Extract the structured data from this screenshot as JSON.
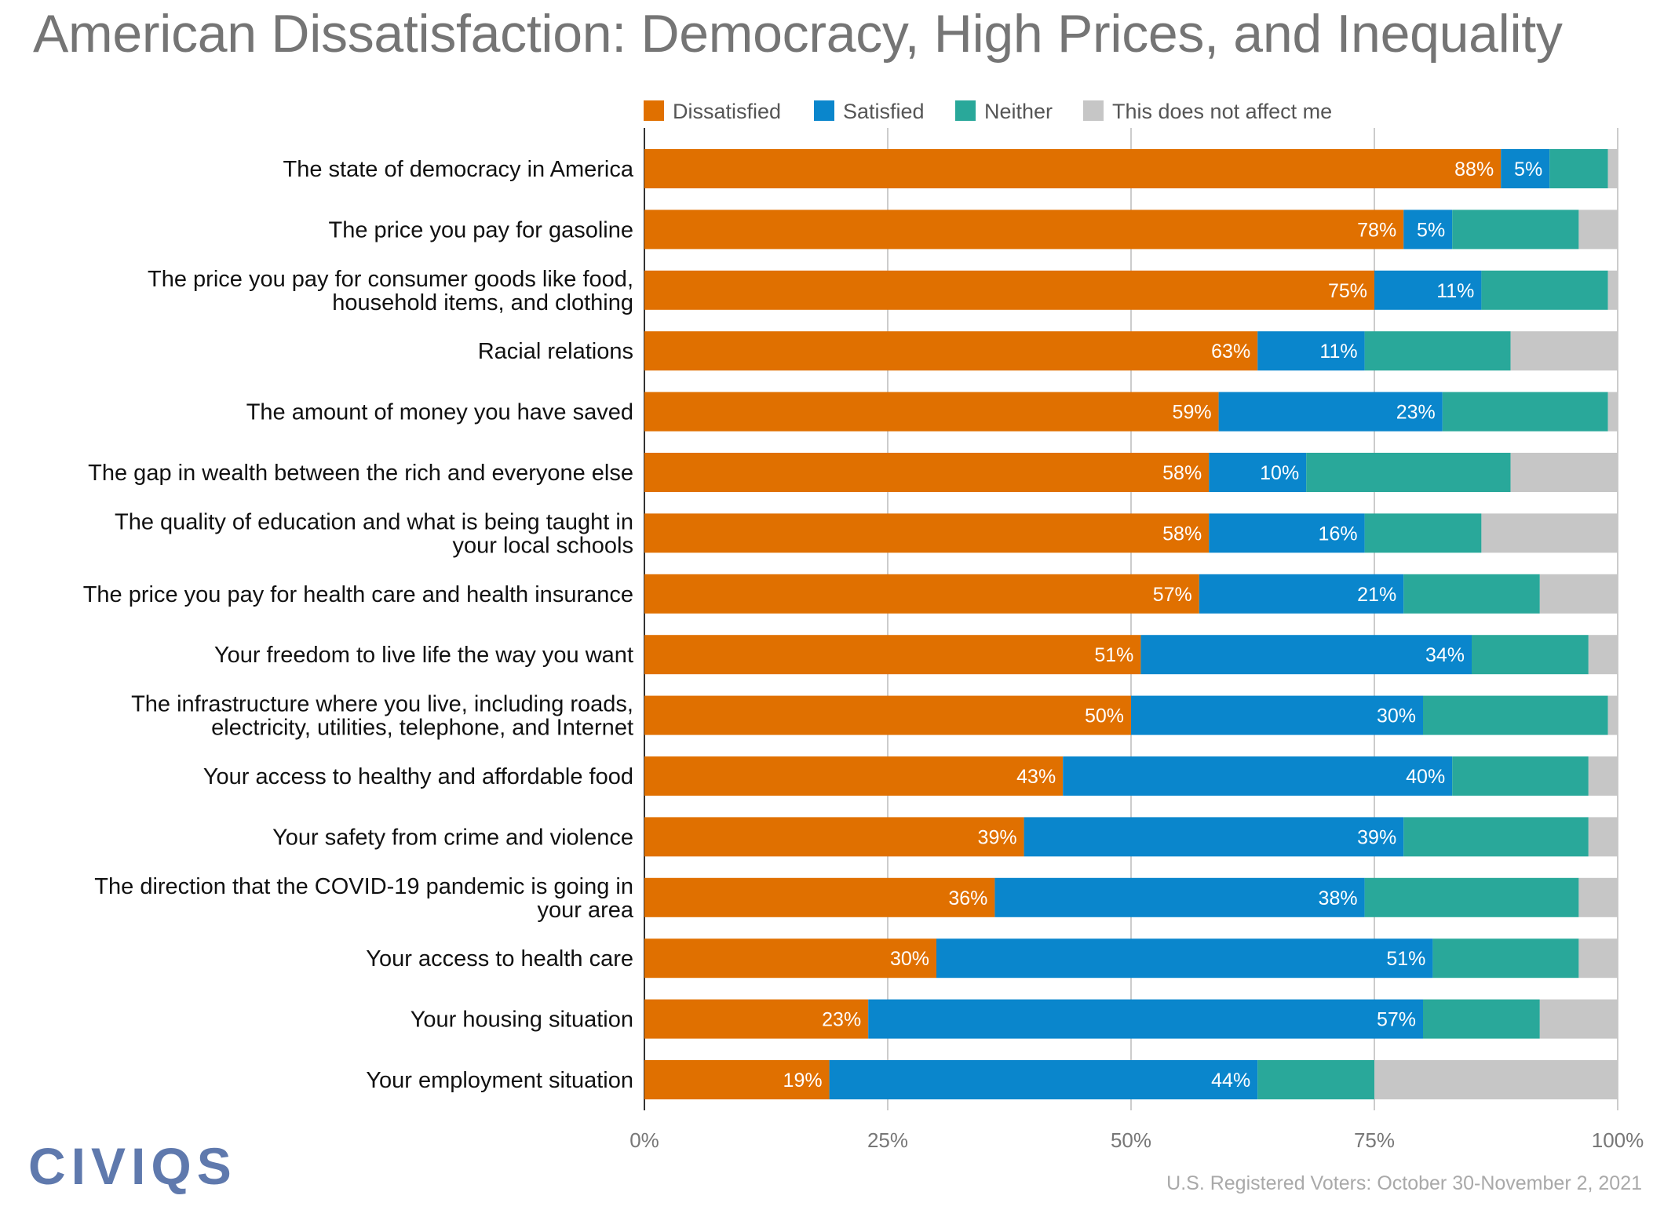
{
  "chart_data": {
    "type": "bar",
    "orientation": "horizontal",
    "stacked": true,
    "title": "American Dissatisfaction: Democracy, High Prices, and Inequality",
    "xlim": [
      0,
      100
    ],
    "x_ticks": [
      "0%",
      "25%",
      "50%",
      "75%",
      "100%"
    ],
    "x_tick_values": [
      0,
      25,
      50,
      75,
      100
    ],
    "grid": true,
    "legend_position": "top",
    "categories": [
      [
        "The state of democracy in America"
      ],
      [
        "The price you pay for gasoline"
      ],
      [
        "The price you pay for consumer goods like food,",
        "household items, and clothing"
      ],
      [
        "Racial relations"
      ],
      [
        "The amount of money you have saved"
      ],
      [
        "The gap in wealth between the rich and everyone else"
      ],
      [
        "The quality of education and what is being taught in",
        "your local schools"
      ],
      [
        "The price you pay for health care and health insurance"
      ],
      [
        "Your freedom to live life the way you want"
      ],
      [
        "The infrastructure where you live, including roads,",
        "electricity, utilities, telephone, and Internet"
      ],
      [
        "Your access to healthy and affordable food"
      ],
      [
        "Your safety from crime and violence"
      ],
      [
        "The direction that the COVID-19 pandemic is going in",
        "your area"
      ],
      [
        "Your access to health care"
      ],
      [
        "Your housing situation"
      ],
      [
        "Your employment situation"
      ]
    ],
    "series": [
      {
        "name": "Dissatisfied",
        "color": "#e07000",
        "show_labels": true,
        "values": [
          88,
          78,
          75,
          63,
          59,
          58,
          58,
          57,
          51,
          50,
          43,
          39,
          36,
          30,
          23,
          19
        ]
      },
      {
        "name": "Satisfied",
        "color": "#0a86cc",
        "show_labels": true,
        "values": [
          5,
          5,
          11,
          11,
          23,
          10,
          16,
          21,
          34,
          30,
          40,
          39,
          38,
          51,
          57,
          44
        ]
      },
      {
        "name": "Neither",
        "color": "#29a89a",
        "show_labels": false,
        "values": [
          6,
          13,
          13,
          15,
          17,
          21,
          12,
          14,
          12,
          19,
          14,
          19,
          22,
          15,
          12,
          12
        ]
      },
      {
        "name": "This does not affect me",
        "color": "#c6c6c6",
        "show_labels": false,
        "values": [
          1,
          4,
          1,
          11,
          1,
          11,
          14,
          8,
          3,
          1,
          3,
          3,
          4,
          4,
          8,
          25
        ]
      }
    ],
    "value_suffix": "%"
  },
  "branding": {
    "logo": "CIVIQS"
  },
  "footer": {
    "note": "U.S. Registered Voters: October 30-November 2, 2021"
  }
}
